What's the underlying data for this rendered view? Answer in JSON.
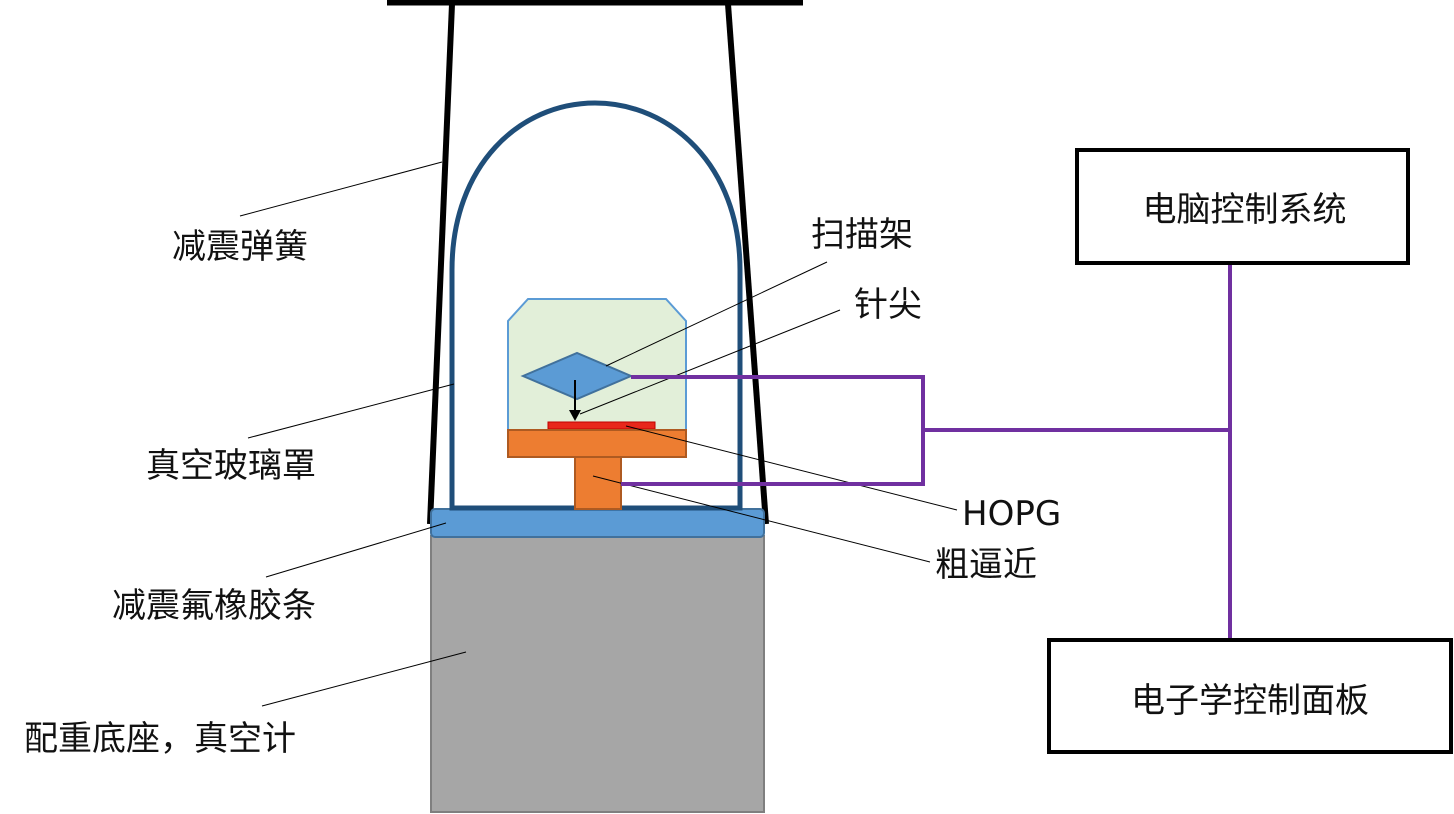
{
  "labels": {
    "spring": "减震弹簧",
    "glass_cover": "真空玻璃罩",
    "rubber_strip": "减震氟橡胶条",
    "base": "配重底座，真空计",
    "scan_frame": "扫描架",
    "tip": "针尖",
    "hopg": "HOPG",
    "coarse_approach": "粗逼近",
    "computer_system": "电脑控制系统",
    "electronics_panel": "电子学控制面板"
  },
  "colors": {
    "dome": "#1f4e79",
    "frame_fill": "#e2efd9",
    "scanner": "#5b9bd5",
    "sample": "#e8271b",
    "stage": "#ed7d31",
    "rubber": "#5b9bd5",
    "base": "#a6a6a6",
    "wire": "#7030a0",
    "leader": "#000000"
  }
}
